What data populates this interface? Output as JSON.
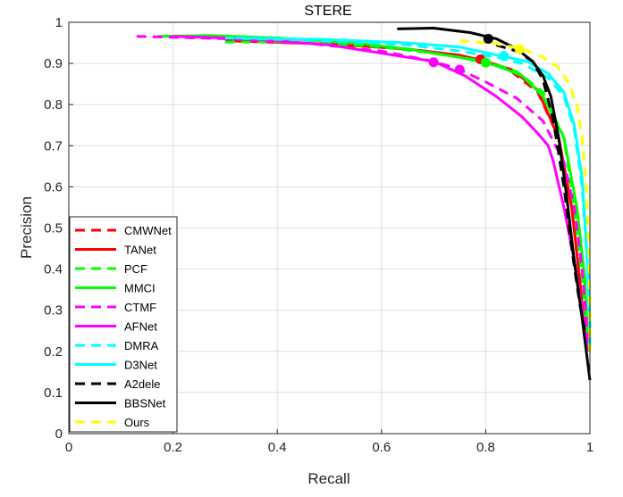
{
  "chart_data": {
    "type": "line",
    "title": "STERE",
    "xlabel": "Recall",
    "ylabel": "Precision",
    "xlim": [
      0,
      1
    ],
    "ylim": [
      0,
      1
    ],
    "xticks": [
      "0",
      "0.2",
      "0.4",
      "0.6",
      "0.8",
      "1"
    ],
    "yticks": [
      "0",
      "0.1",
      "0.2",
      "0.3",
      "0.4",
      "0.5",
      "0.6",
      "0.7",
      "0.8",
      "0.9",
      "1"
    ],
    "grid": true,
    "legend_position": "bottom-left",
    "series": [
      {
        "name": "CMWNet",
        "color": "#ff0000",
        "dash": true,
        "points": [
          [
            0.3,
            0.955
          ],
          [
            0.5,
            0.948
          ],
          [
            0.65,
            0.935
          ],
          [
            0.75,
            0.92
          ],
          [
            0.8,
            0.905
          ],
          [
            0.85,
            0.88
          ],
          [
            0.9,
            0.83
          ],
          [
            0.94,
            0.72
          ],
          [
            0.965,
            0.55
          ],
          [
            0.98,
            0.38
          ],
          [
            0.99,
            0.25
          ],
          [
            0.995,
            0.2
          ]
        ],
        "marker": [
          0.79,
          0.91
        ]
      },
      {
        "name": "TANet",
        "color": "#ff0000",
        "dash": false,
        "points": [
          [
            0.3,
            0.955
          ],
          [
            0.5,
            0.947
          ],
          [
            0.65,
            0.935
          ],
          [
            0.75,
            0.92
          ],
          [
            0.8,
            0.905
          ],
          [
            0.85,
            0.885
          ],
          [
            0.9,
            0.835
          ],
          [
            0.94,
            0.72
          ],
          [
            0.965,
            0.55
          ],
          [
            0.98,
            0.38
          ],
          [
            0.99,
            0.25
          ],
          [
            0.995,
            0.2
          ]
        ]
      },
      {
        "name": "PCF",
        "color": "#00ff00",
        "dash": true,
        "points": [
          [
            0.3,
            0.952
          ],
          [
            0.45,
            0.953
          ],
          [
            0.6,
            0.94
          ],
          [
            0.7,
            0.925
          ],
          [
            0.8,
            0.905
          ],
          [
            0.86,
            0.88
          ],
          [
            0.91,
            0.83
          ],
          [
            0.95,
            0.72
          ],
          [
            0.97,
            0.55
          ],
          [
            0.985,
            0.38
          ],
          [
            0.995,
            0.25
          ],
          [
            1.0,
            0.2
          ]
        ],
        "marker": [
          0.8,
          0.902
        ]
      },
      {
        "name": "MMCI",
        "color": "#00ff00",
        "dash": false,
        "points": [
          [
            0.17,
            0.966
          ],
          [
            0.27,
            0.968
          ],
          [
            0.4,
            0.962
          ],
          [
            0.55,
            0.95
          ],
          [
            0.65,
            0.935
          ],
          [
            0.75,
            0.915
          ],
          [
            0.82,
            0.895
          ],
          [
            0.87,
            0.87
          ],
          [
            0.91,
            0.82
          ],
          [
            0.95,
            0.72
          ],
          [
            0.975,
            0.55
          ],
          [
            0.99,
            0.38
          ],
          [
            0.995,
            0.25
          ],
          [
            1.0,
            0.2
          ]
        ]
      },
      {
        "name": "CTMF",
        "color": "#ff00ff",
        "dash": true,
        "points": [
          [
            0.13,
            0.966
          ],
          [
            0.3,
            0.96
          ],
          [
            0.45,
            0.95
          ],
          [
            0.6,
            0.93
          ],
          [
            0.7,
            0.905
          ],
          [
            0.75,
            0.885
          ],
          [
            0.8,
            0.855
          ],
          [
            0.86,
            0.815
          ],
          [
            0.91,
            0.76
          ],
          [
            0.95,
            0.66
          ],
          [
            0.97,
            0.55
          ],
          [
            0.985,
            0.4
          ],
          [
            0.995,
            0.25
          ],
          [
            1.0,
            0.2
          ]
        ],
        "marker": [
          0.75,
          0.885
        ]
      },
      {
        "name": "AFNet",
        "color": "#ff00ff",
        "dash": false,
        "points": [
          [
            0.2,
            0.966
          ],
          [
            0.35,
            0.96
          ],
          [
            0.5,
            0.945
          ],
          [
            0.6,
            0.925
          ],
          [
            0.7,
            0.905
          ],
          [
            0.76,
            0.87
          ],
          [
            0.82,
            0.82
          ],
          [
            0.87,
            0.77
          ],
          [
            0.9,
            0.73
          ],
          [
            0.92,
            0.7
          ],
          [
            0.93,
            0.66
          ],
          [
            0.95,
            0.55
          ],
          [
            0.97,
            0.42
          ],
          [
            0.985,
            0.3
          ],
          [
            0.995,
            0.2
          ]
        ],
        "marker": [
          0.7,
          0.903
        ]
      },
      {
        "name": "DMRA",
        "color": "#00ffff",
        "dash": true,
        "points": [
          [
            0.3,
            0.962
          ],
          [
            0.5,
            0.955
          ],
          [
            0.65,
            0.945
          ],
          [
            0.75,
            0.93
          ],
          [
            0.82,
            0.915
          ],
          [
            0.87,
            0.9
          ],
          [
            0.92,
            0.865
          ],
          [
            0.95,
            0.82
          ],
          [
            0.97,
            0.74
          ],
          [
            0.985,
            0.6
          ],
          [
            0.995,
            0.42
          ],
          [
            1.0,
            0.28
          ],
          [
            1.0,
            0.2
          ]
        ]
      },
      {
        "name": "D3Net",
        "color": "#00ffff",
        "dash": false,
        "points": [
          [
            0.32,
            0.962
          ],
          [
            0.5,
            0.958
          ],
          [
            0.65,
            0.95
          ],
          [
            0.75,
            0.94
          ],
          [
            0.83,
            0.918
          ],
          [
            0.88,
            0.905
          ],
          [
            0.92,
            0.875
          ],
          [
            0.95,
            0.83
          ],
          [
            0.97,
            0.75
          ],
          [
            0.985,
            0.62
          ],
          [
            0.995,
            0.42
          ],
          [
            1.0,
            0.25
          ]
        ],
        "marker": [
          0.835,
          0.918
        ]
      },
      {
        "name": "A2dele",
        "color": "#000000",
        "dash": true,
        "points": [
          [
            0.82,
            0.945
          ],
          [
            0.86,
            0.93
          ],
          [
            0.89,
            0.905
          ],
          [
            0.91,
            0.86
          ],
          [
            0.93,
            0.76
          ],
          [
            0.95,
            0.6
          ],
          [
            0.965,
            0.45
          ],
          [
            0.98,
            0.32
          ],
          [
            0.99,
            0.25
          ]
        ]
      },
      {
        "name": "BBSNet",
        "color": "#000000",
        "dash": false,
        "points": [
          [
            0.63,
            0.984
          ],
          [
            0.7,
            0.986
          ],
          [
            0.77,
            0.975
          ],
          [
            0.82,
            0.96
          ],
          [
            0.86,
            0.935
          ],
          [
            0.89,
            0.905
          ],
          [
            0.91,
            0.87
          ],
          [
            0.925,
            0.82
          ],
          [
            0.94,
            0.72
          ],
          [
            0.955,
            0.58
          ],
          [
            0.97,
            0.42
          ],
          [
            0.985,
            0.28
          ],
          [
            1.0,
            0.13
          ]
        ],
        "marker": [
          0.805,
          0.96
        ]
      },
      {
        "name": "Ours",
        "color": "#ffff00",
        "dash": true,
        "points": [
          [
            0.75,
            0.955
          ],
          [
            0.82,
            0.948
          ],
          [
            0.87,
            0.935
          ],
          [
            0.91,
            0.915
          ],
          [
            0.94,
            0.89
          ],
          [
            0.96,
            0.85
          ],
          [
            0.975,
            0.8
          ],
          [
            0.985,
            0.72
          ],
          [
            0.993,
            0.6
          ],
          [
            0.998,
            0.45
          ],
          [
            1.0,
            0.3
          ],
          [
            1.0,
            0.2
          ]
        ],
        "marker": [
          0.865,
          0.935
        ]
      }
    ]
  }
}
